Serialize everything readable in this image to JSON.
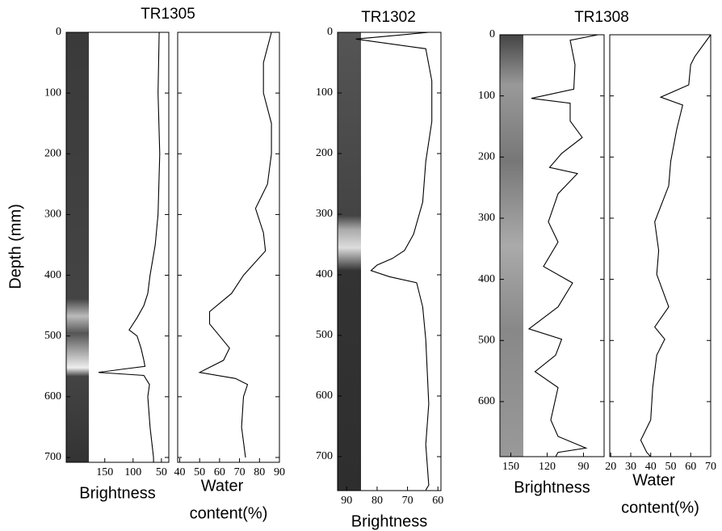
{
  "chart_data": [
    {
      "type": "line",
      "title": "TR1305",
      "ylabel": "Depth (mm)",
      "xlabel": [
        "Brightness"
      ],
      "color": "#000000",
      "xlim": [
        218,
        37
      ],
      "xticks": [
        150,
        100,
        50
      ],
      "ylim": [
        0,
        708
      ],
      "yticks": [
        0,
        100,
        200,
        300,
        400,
        500,
        600,
        700
      ],
      "ytick_labels": true,
      "depth": [
        0,
        100,
        200,
        300,
        350,
        400,
        430,
        450,
        470,
        490,
        500,
        520,
        540,
        550,
        555,
        560,
        565,
        580,
        600,
        650,
        700,
        708
      ],
      "values": [
        54,
        56,
        53,
        56,
        61,
        70,
        74,
        81,
        93,
        107,
        93,
        86,
        81,
        79,
        121,
        161,
        81,
        71,
        74,
        70,
        64,
        64
      ]
    },
    {
      "type": "line",
      "xlabel": [
        "Water",
        "content(%)"
      ],
      "color": "#000000",
      "xlim": [
        39,
        90
      ],
      "xticks": [
        40,
        50,
        60,
        70,
        80,
        90
      ],
      "ylim": [
        0,
        708
      ],
      "yticks": [
        0,
        100,
        200,
        300,
        400,
        500,
        600,
        700
      ],
      "ytick_labels": false,
      "depth": [
        0,
        50,
        100,
        150,
        200,
        250,
        290,
        330,
        360,
        400,
        430,
        460,
        480,
        500,
        520,
        540,
        555,
        560,
        570,
        580,
        600,
        650,
        700
      ],
      "values": [
        86,
        82,
        82,
        86,
        86,
        84,
        78,
        82,
        83,
        72,
        66,
        55,
        55,
        60,
        65,
        62,
        53,
        50,
        68,
        74,
        72,
        71,
        73
      ]
    },
    {
      "type": "line",
      "title": "TR1302",
      "xlabel": [
        "Brightness"
      ],
      "color": "#000000",
      "xlim": [
        93,
        59
      ],
      "xticks": [
        90,
        80,
        70,
        60
      ],
      "ylim": [
        0,
        756
      ],
      "yticks": [
        0,
        100,
        200,
        300,
        400,
        500,
        600,
        700
      ],
      "ytick_labels": true,
      "depth": [
        0,
        11,
        27,
        80,
        147,
        213,
        280,
        333,
        360,
        373,
        384,
        393,
        403,
        413,
        453,
        507,
        613,
        680,
        747,
        755
      ],
      "values": [
        63,
        87,
        64,
        62,
        62,
        64,
        65,
        68,
        71,
        75,
        80,
        82,
        76,
        67,
        65,
        64,
        63,
        64,
        63,
        64
      ]
    },
    {
      "type": "line",
      "title": "TR1308",
      "xlabel": [
        "Brightness"
      ],
      "color": "#000000",
      "xlim": [
        159,
        73
      ],
      "xticks": [
        150,
        120,
        90
      ],
      "ylim": [
        0,
        690
      ],
      "yticks": [
        0,
        100,
        200,
        300,
        400,
        500,
        600
      ],
      "ytick_labels": true,
      "depth": [
        0,
        9,
        49,
        89,
        104,
        112,
        141,
        168,
        194,
        217,
        227,
        260,
        306,
        339,
        379,
        406,
        445,
        481,
        498,
        524,
        551,
        577,
        630,
        657,
        676,
        683,
        690
      ],
      "values": [
        78,
        101,
        97,
        98,
        133,
        101,
        101,
        91,
        108,
        118,
        95,
        111,
        119,
        111,
        123,
        99,
        111,
        135,
        108,
        113,
        130,
        111,
        117,
        111,
        88,
        111,
        113
      ]
    },
    {
      "type": "line",
      "xlabel": [
        "Water",
        "content(%)"
      ],
      "color": "#000000",
      "xlim": [
        19.5,
        70
      ],
      "xticks": [
        20,
        30,
        40,
        50,
        60,
        70
      ],
      "ylim": [
        0,
        690
      ],
      "yticks": [
        0,
        100,
        200,
        300,
        400,
        500,
        600
      ],
      "ytick_labels": false,
      "depth": [
        0,
        36,
        49,
        82,
        102,
        115,
        155,
        207,
        247,
        306,
        353,
        392,
        445,
        478,
        498,
        524,
        577,
        630,
        663,
        683,
        690
      ],
      "values": [
        70,
        62,
        60,
        59,
        45,
        56,
        53,
        50,
        49,
        42,
        44,
        43,
        49,
        42,
        47,
        43,
        41,
        40,
        35,
        38,
        40
      ]
    }
  ]
}
